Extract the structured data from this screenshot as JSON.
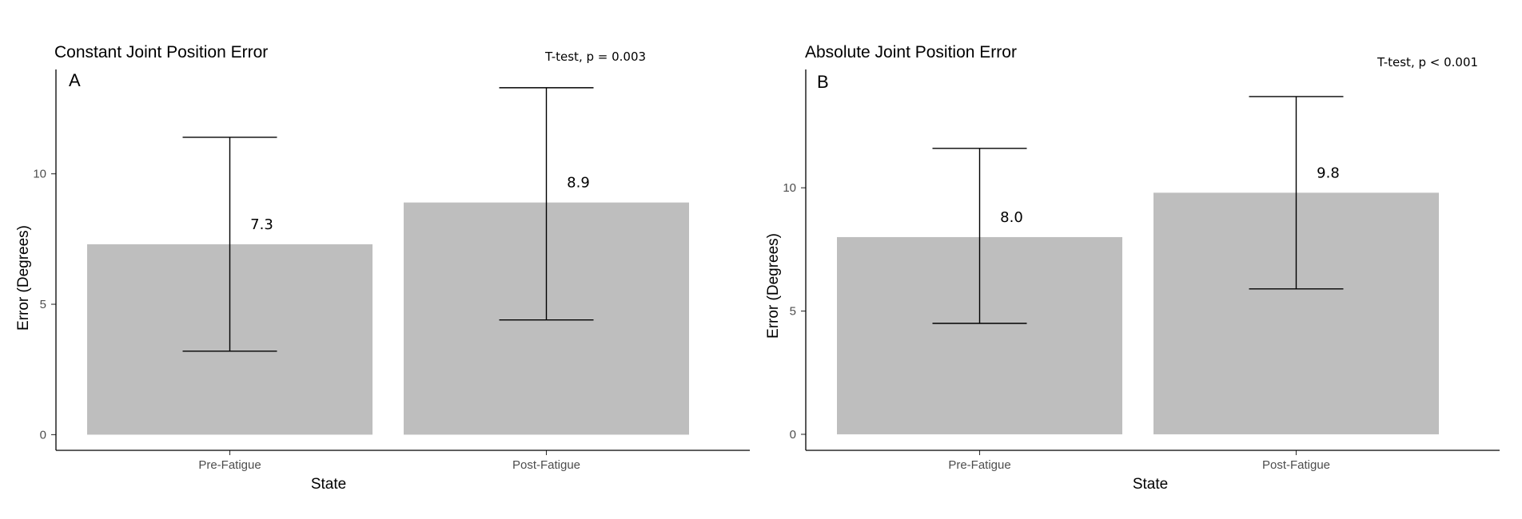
{
  "chart_data": [
    {
      "type": "bar",
      "title": "Constant Joint Position Error",
      "panel_label": "A",
      "stat_annotation": "T-test, p = 0.003",
      "xlabel": "State",
      "ylabel": "Error (Degrees)",
      "categories": [
        "Pre-Fatigue",
        "Post-Fatigue"
      ],
      "values": [
        7.3,
        8.9
      ],
      "data_labels": [
        "7.3",
        "8.9"
      ],
      "error_bars": [
        [
          3.2,
          11.4
        ],
        [
          4.4,
          13.3
        ]
      ],
      "yticks": [
        0,
        5,
        10
      ],
      "ytick_labels": [
        "0",
        "5",
        "10"
      ],
      "ylim": [
        -0.6,
        14.0
      ],
      "bar_color": "#bebebe",
      "grid": false
    },
    {
      "type": "bar",
      "title": "Absolute Joint Position Error",
      "panel_label": "B",
      "stat_annotation": "T-test, p < 0.001",
      "xlabel": "State",
      "ylabel": "Error (Degrees)",
      "categories": [
        "Pre-Fatigue",
        "Post-Fatigue"
      ],
      "values": [
        8.0,
        9.8
      ],
      "data_labels": [
        "8.0",
        "9.8"
      ],
      "error_bars": [
        [
          4.5,
          11.6
        ],
        [
          5.9,
          13.7
        ]
      ],
      "yticks": [
        0,
        5,
        10
      ],
      "ytick_labels": [
        "0",
        "5",
        "10"
      ],
      "ylim": [
        -0.65,
        14.8
      ],
      "bar_color": "#bebebe",
      "grid": false
    }
  ]
}
